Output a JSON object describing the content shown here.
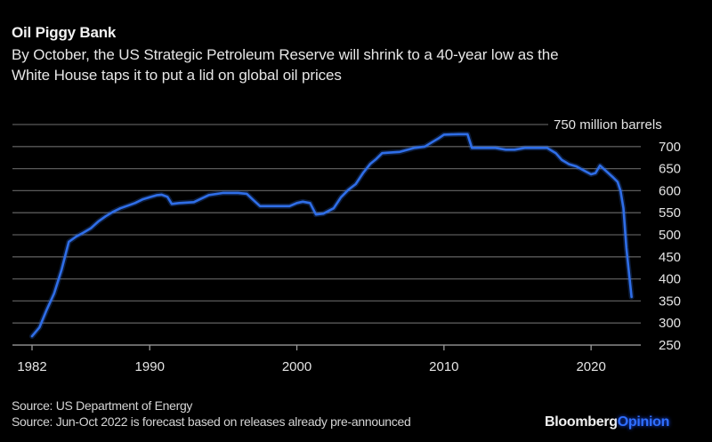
{
  "header": {
    "title": "Oil Piggy Bank",
    "subtitle": "By October, the US Strategic Petroleum Reserve will shrink to a 40-year low as the White House taps it to put a lid on global oil prices"
  },
  "footer": {
    "source_1": "Source: US Department of Energy",
    "source_2": "Source: Jun-Oct 2022 is forecast based on releases already pre-announced",
    "brand_primary": "Bloomberg",
    "brand_secondary": "Opinion"
  },
  "colors": {
    "background": "#000000",
    "line": "#2f6ee8",
    "grid": "#5a5a5a",
    "brand_accent": "#2f6fff"
  },
  "chart_data": {
    "type": "line",
    "title": "Oil Piggy Bank",
    "subtitle": "By October, the US Strategic Petroleum Reserve will shrink to a 40-year low as the White House taps it to put a lid on global oil prices",
    "xlabel": "",
    "ylabel": "million barrels",
    "unit_label": "750 million barrels",
    "xlim": [
      1981.3,
      2023.2
    ],
    "ylim": [
      250,
      750
    ],
    "x_ticks": [
      1982,
      1990,
      2000,
      2010,
      2020
    ],
    "y_ticks": [
      250,
      300,
      350,
      400,
      450,
      500,
      550,
      600,
      650,
      700,
      750
    ],
    "y_tick_labels": [
      "250",
      "300",
      "350",
      "400",
      "450",
      "500",
      "550",
      "600",
      "650",
      "700",
      "750 million barrels"
    ],
    "grid": true,
    "y_axis_position": "right",
    "series": [
      {
        "name": "US Strategic Petroleum Reserve",
        "x": [
          1982.0,
          1982.5,
          1983.0,
          1983.5,
          1984.0,
          1984.5,
          1985.0,
          1985.5,
          1986.0,
          1986.5,
          1987.0,
          1987.5,
          1988.0,
          1988.5,
          1989.0,
          1989.5,
          1990.0,
          1990.5,
          1990.8,
          1991.2,
          1991.5,
          1992.0,
          1993.0,
          1994.0,
          1995.0,
          1996.0,
          1996.6,
          1997.0,
          1997.5,
          1998.5,
          1999.5,
          2000.0,
          2000.4,
          2000.9,
          2001.3,
          2001.8,
          2002.5,
          2003.0,
          2003.5,
          2004.0,
          2004.5,
          2005.0,
          2005.4,
          2005.8,
          2006.2,
          2007.0,
          2008.0,
          2008.7,
          2009.2,
          2009.6,
          2010.0,
          2011.0,
          2011.6,
          2011.9,
          2012.5,
          2013.5,
          2014.2,
          2014.8,
          2015.5,
          2016.5,
          2017.0,
          2017.6,
          2018.0,
          2018.5,
          2019.0,
          2019.5,
          2020.0,
          2020.3,
          2020.6,
          2021.0,
          2021.5,
          2021.8,
          2022.0,
          2022.2,
          2022.4,
          2022.75
        ],
        "values": [
          270,
          290,
          330,
          367,
          420,
          484,
          496,
          505,
          515,
          530,
          542,
          552,
          560,
          566,
          572,
          580,
          585,
          590,
          591,
          586,
          570,
          572,
          574,
          590,
          595,
          595,
          593,
          580,
          565,
          565,
          565,
          572,
          575,
          572,
          546,
          548,
          560,
          585,
          602,
          615,
          640,
          661,
          672,
          685,
          686,
          688,
          697,
          700,
          710,
          718,
          727,
          728,
          728,
          697,
          697,
          697,
          693,
          693,
          697,
          697,
          697,
          685,
          670,
          660,
          655,
          646,
          637,
          640,
          657,
          645,
          630,
          620,
          600,
          560,
          470,
          359
        ]
      }
    ]
  }
}
